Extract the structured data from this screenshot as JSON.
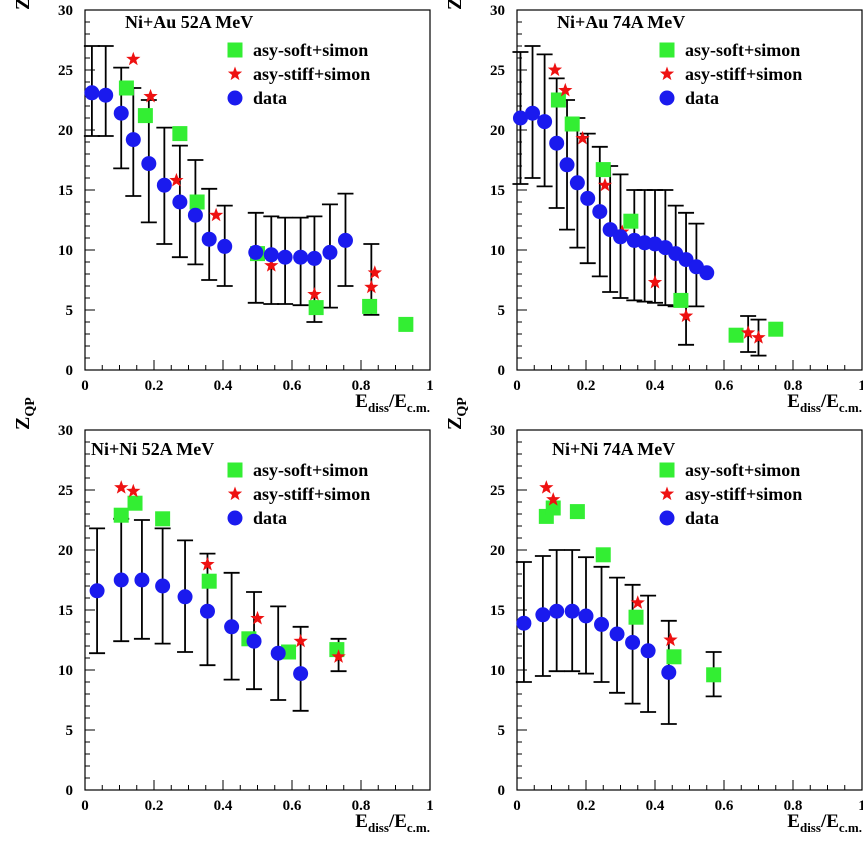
{
  "colors": {
    "soft": "#33ee33",
    "stiff": "#ee1111",
    "data": "#1a1aee",
    "axis": "#000000"
  },
  "chart_data": [
    {
      "type": "scatter",
      "title": "Ni+Au 52A MeV",
      "ylabel_main": "Z",
      "ylabel_sub": "QP",
      "xlabel_main": "E",
      "xlabel_sub1": "diss",
      "xlabel_sep": "/E",
      "xlabel_sub2": "c.m.",
      "xlim": [
        0,
        1
      ],
      "ylim": [
        0,
        30
      ],
      "xticks": [
        0,
        0.2,
        0.4,
        0.6,
        0.8,
        1
      ],
      "xtick_labels": [
        "0",
        "0.2",
        "0.4",
        "0.6",
        "0.8",
        "1"
      ],
      "yticks": [
        0,
        5,
        10,
        15,
        20,
        25,
        30
      ],
      "ytick_labels": [
        "0",
        "5",
        "10",
        "15",
        "20",
        "25",
        "30"
      ],
      "legend_position": "top-right",
      "series": [
        {
          "name": "asy-soft+simon",
          "marker": "square",
          "x": [
            0.12,
            0.175,
            0.275,
            0.325,
            0.5,
            0.67,
            0.825,
            0.93
          ],
          "y": [
            23.5,
            21.2,
            19.7,
            14.0,
            9.7,
            5.2,
            5.3,
            3.8
          ]
        },
        {
          "name": "asy-stiff+simon",
          "marker": "star",
          "x": [
            0.14,
            0.19,
            0.265,
            0.38,
            0.54,
            0.665,
            0.83,
            0.84
          ],
          "y": [
            25.9,
            22.8,
            15.8,
            12.9,
            8.7,
            6.3,
            6.9,
            8.1
          ]
        },
        {
          "name": "data",
          "marker": "circle",
          "x": [
            0.02,
            0.06,
            0.105,
            0.14,
            0.185,
            0.23,
            0.275,
            0.32,
            0.36,
            0.405,
            0.495,
            0.54,
            0.58,
            0.625,
            0.665,
            0.71,
            0.755
          ],
          "y": [
            23.1,
            22.9,
            21.4,
            19.2,
            17.2,
            15.4,
            14.0,
            12.9,
            10.9,
            10.3,
            9.8,
            9.6,
            9.4,
            9.4,
            9.3,
            9.8,
            10.8
          ]
        }
      ],
      "error_bars": [
        {
          "x": 0.02,
          "low": 19.5,
          "high": 27.0
        },
        {
          "x": 0.06,
          "low": 19.5,
          "high": 27.0
        },
        {
          "x": 0.105,
          "low": 16.8,
          "high": 25.2
        },
        {
          "x": 0.14,
          "low": 14.5,
          "high": 23.5
        },
        {
          "x": 0.185,
          "low": 12.3,
          "high": 22.5
        },
        {
          "x": 0.23,
          "low": 10.5,
          "high": 20.2
        },
        {
          "x": 0.275,
          "low": 9.4,
          "high": 18.7
        },
        {
          "x": 0.32,
          "low": 8.8,
          "high": 17.5
        },
        {
          "x": 0.36,
          "low": 7.5,
          "high": 15.1
        },
        {
          "x": 0.405,
          "low": 7.0,
          "high": 13.7
        },
        {
          "x": 0.495,
          "low": 5.6,
          "high": 13.1
        },
        {
          "x": 0.54,
          "low": 5.5,
          "high": 12.8
        },
        {
          "x": 0.58,
          "low": 5.5,
          "high": 12.7
        },
        {
          "x": 0.625,
          "low": 5.4,
          "high": 12.7
        },
        {
          "x": 0.665,
          "low": 4.0,
          "high": 12.8
        },
        {
          "x": 0.71,
          "low": 5.2,
          "high": 13.8
        },
        {
          "x": 0.755,
          "low": 7.0,
          "high": 14.7
        },
        {
          "x": 0.83,
          "low": 4.6,
          "high": 10.5
        }
      ]
    },
    {
      "type": "scatter",
      "title": "Ni+Au 74A MeV",
      "ylabel_main": "Z",
      "ylabel_sub": "QP",
      "xlabel_main": "E",
      "xlabel_sub1": "diss",
      "xlabel_sep": "/E",
      "xlabel_sub2": "c.m.",
      "xlim": [
        0,
        1
      ],
      "ylim": [
        0,
        30
      ],
      "xticks": [
        0,
        0.2,
        0.4,
        0.6,
        0.8,
        1
      ],
      "xtick_labels": [
        "0",
        "0.2",
        "0.4",
        "0.6",
        "0.8",
        "1"
      ],
      "yticks": [
        0,
        5,
        10,
        15,
        20,
        25,
        30
      ],
      "ytick_labels": [
        "0",
        "5",
        "10",
        "15",
        "20",
        "25",
        "30"
      ],
      "legend_position": "top-right",
      "series": [
        {
          "name": "asy-soft+simon",
          "marker": "square",
          "x": [
            0.12,
            0.16,
            0.25,
            0.33,
            0.475,
            0.635,
            0.75
          ],
          "y": [
            22.5,
            20.5,
            16.7,
            12.4,
            5.8,
            2.9,
            3.4
          ]
        },
        {
          "name": "asy-stiff+simon",
          "marker": "star",
          "x": [
            0.11,
            0.14,
            0.19,
            0.255,
            0.305,
            0.4,
            0.49,
            0.67,
            0.7
          ],
          "y": [
            25.0,
            23.3,
            19.3,
            15.4,
            11.5,
            7.3,
            4.5,
            3.1,
            2.7
          ]
        },
        {
          "name": "data",
          "marker": "circle",
          "x": [
            0.01,
            0.045,
            0.08,
            0.115,
            0.145,
            0.175,
            0.205,
            0.24,
            0.27,
            0.3,
            0.34,
            0.37,
            0.4,
            0.43,
            0.46,
            0.49,
            0.52,
            0.55
          ],
          "y": [
            21.0,
            21.4,
            20.7,
            18.9,
            17.1,
            15.6,
            14.3,
            13.2,
            11.7,
            11.1,
            10.8,
            10.6,
            10.5,
            10.2,
            9.7,
            9.2,
            8.6,
            8.1
          ]
        }
      ],
      "error_bars": [
        {
          "x": 0.01,
          "low": 15.5,
          "high": 26.5
        },
        {
          "x": 0.045,
          "low": 16.0,
          "high": 27.0
        },
        {
          "x": 0.08,
          "low": 15.3,
          "high": 26.3
        },
        {
          "x": 0.115,
          "low": 13.5,
          "high": 24.3
        },
        {
          "x": 0.145,
          "low": 11.7,
          "high": 22.5
        },
        {
          "x": 0.175,
          "low": 10.2,
          "high": 21.0
        },
        {
          "x": 0.205,
          "low": 8.9,
          "high": 19.7
        },
        {
          "x": 0.24,
          "low": 7.8,
          "high": 18.6
        },
        {
          "x": 0.27,
          "low": 6.5,
          "high": 17.0
        },
        {
          "x": 0.3,
          "low": 6.0,
          "high": 16.3
        },
        {
          "x": 0.34,
          "low": 5.8,
          "high": 15.0
        },
        {
          "x": 0.37,
          "low": 5.7,
          "high": 15.0
        },
        {
          "x": 0.4,
          "low": 5.6,
          "high": 15.0
        },
        {
          "x": 0.43,
          "low": 5.4,
          "high": 15.0
        },
        {
          "x": 0.46,
          "low": 5.3,
          "high": 13.7
        },
        {
          "x": 0.49,
          "low": 2.1,
          "high": 13.1
        },
        {
          "x": 0.52,
          "low": 5.3,
          "high": 12.2
        },
        {
          "x": 0.67,
          "low": 1.5,
          "high": 4.5
        },
        {
          "x": 0.7,
          "low": 1.2,
          "high": 4.2
        }
      ]
    },
    {
      "type": "scatter",
      "title": "Ni+Ni 52A MeV",
      "ylabel_main": "Z",
      "ylabel_sub": "QP",
      "xlabel_main": "E",
      "xlabel_sub1": "diss",
      "xlabel_sep": "/E",
      "xlabel_sub2": "c.m.",
      "xlim": [
        0,
        1
      ],
      "ylim": [
        0,
        30
      ],
      "xticks": [
        0,
        0.2,
        0.4,
        0.6,
        0.8,
        1
      ],
      "xtick_labels": [
        "0",
        "0.2",
        "0.4",
        "0.6",
        "0.8",
        "1"
      ],
      "yticks": [
        0,
        5,
        10,
        15,
        20,
        25,
        30
      ],
      "ytick_labels": [
        "0",
        "5",
        "10",
        "15",
        "20",
        "25",
        "30"
      ],
      "legend_position": "top-right",
      "series": [
        {
          "name": "asy-soft+simon",
          "marker": "square",
          "x": [
            0.105,
            0.145,
            0.225,
            0.36,
            0.475,
            0.59,
            0.73
          ],
          "y": [
            22.9,
            23.9,
            22.6,
            17.4,
            12.6,
            11.5,
            11.7
          ]
        },
        {
          "name": "asy-stiff+simon",
          "marker": "star",
          "x": [
            0.105,
            0.14,
            0.355,
            0.5,
            0.625,
            0.735
          ],
          "y": [
            25.2,
            24.9,
            18.8,
            14.3,
            12.4,
            11.1
          ]
        },
        {
          "name": "data",
          "marker": "circle",
          "x": [
            0.035,
            0.105,
            0.165,
            0.225,
            0.29,
            0.355,
            0.425,
            0.49,
            0.56,
            0.625
          ],
          "y": [
            16.6,
            17.5,
            17.5,
            17.0,
            16.1,
            14.9,
            13.6,
            12.4,
            11.4,
            9.7
          ]
        }
      ],
      "error_bars": [
        {
          "x": 0.035,
          "low": 11.4,
          "high": 21.8
        },
        {
          "x": 0.105,
          "low": 12.4,
          "high": 22.6
        },
        {
          "x": 0.165,
          "low": 12.6,
          "high": 22.5
        },
        {
          "x": 0.225,
          "low": 12.2,
          "high": 21.8
        },
        {
          "x": 0.29,
          "low": 11.5,
          "high": 20.8
        },
        {
          "x": 0.355,
          "low": 10.4,
          "high": 19.7
        },
        {
          "x": 0.425,
          "low": 9.2,
          "high": 18.1
        },
        {
          "x": 0.49,
          "low": 8.4,
          "high": 16.5
        },
        {
          "x": 0.56,
          "low": 7.5,
          "high": 15.3
        },
        {
          "x": 0.625,
          "low": 6.6,
          "high": 13.6
        },
        {
          "x": 0.735,
          "low": 9.9,
          "high": 12.6
        }
      ]
    },
    {
      "type": "scatter",
      "title": "Ni+Ni 74A MeV",
      "ylabel_main": "Z",
      "ylabel_sub": "QP",
      "xlabel_main": "E",
      "xlabel_sub1": "diss",
      "xlabel_sep": "/E",
      "xlabel_sub2": "c.m.",
      "xlim": [
        0,
        1
      ],
      "ylim": [
        0,
        30
      ],
      "xticks": [
        0,
        0.2,
        0.4,
        0.6,
        0.8,
        1
      ],
      "xtick_labels": [
        "0",
        "0.2",
        "0.4",
        "0.6",
        "0.8",
        "1"
      ],
      "yticks": [
        0,
        5,
        10,
        15,
        20,
        25,
        30
      ],
      "ytick_labels": [
        "0",
        "5",
        "10",
        "15",
        "20",
        "25",
        "30"
      ],
      "legend_position": "top-right",
      "series": [
        {
          "name": "asy-soft+simon",
          "marker": "square",
          "x": [
            0.085,
            0.105,
            0.175,
            0.25,
            0.345,
            0.455,
            0.57
          ],
          "y": [
            22.8,
            23.5,
            23.2,
            19.6,
            14.4,
            11.1,
            9.6
          ]
        },
        {
          "name": "asy-stiff+simon",
          "marker": "star",
          "x": [
            0.085,
            0.105,
            0.35,
            0.445
          ],
          "y": [
            25.2,
            24.2,
            15.6,
            12.5
          ]
        },
        {
          "name": "data",
          "marker": "circle",
          "x": [
            0.02,
            0.075,
            0.115,
            0.16,
            0.2,
            0.245,
            0.29,
            0.335,
            0.38,
            0.44
          ],
          "y": [
            13.9,
            14.6,
            14.9,
            14.9,
            14.5,
            13.8,
            13.0,
            12.3,
            11.6,
            9.8
          ]
        }
      ],
      "error_bars": [
        {
          "x": 0.02,
          "low": 9.0,
          "high": 19.0
        },
        {
          "x": 0.075,
          "low": 9.5,
          "high": 19.5
        },
        {
          "x": 0.115,
          "low": 9.9,
          "high": 20.0
        },
        {
          "x": 0.16,
          "low": 9.9,
          "high": 20.0
        },
        {
          "x": 0.2,
          "low": 9.7,
          "high": 19.4
        },
        {
          "x": 0.245,
          "low": 9.0,
          "high": 18.6
        },
        {
          "x": 0.29,
          "low": 8.1,
          "high": 17.7
        },
        {
          "x": 0.335,
          "low": 7.2,
          "high": 17.1
        },
        {
          "x": 0.38,
          "low": 6.5,
          "high": 16.2
        },
        {
          "x": 0.44,
          "low": 5.5,
          "high": 14.1
        },
        {
          "x": 0.57,
          "low": 7.8,
          "high": 11.5
        }
      ]
    }
  ]
}
